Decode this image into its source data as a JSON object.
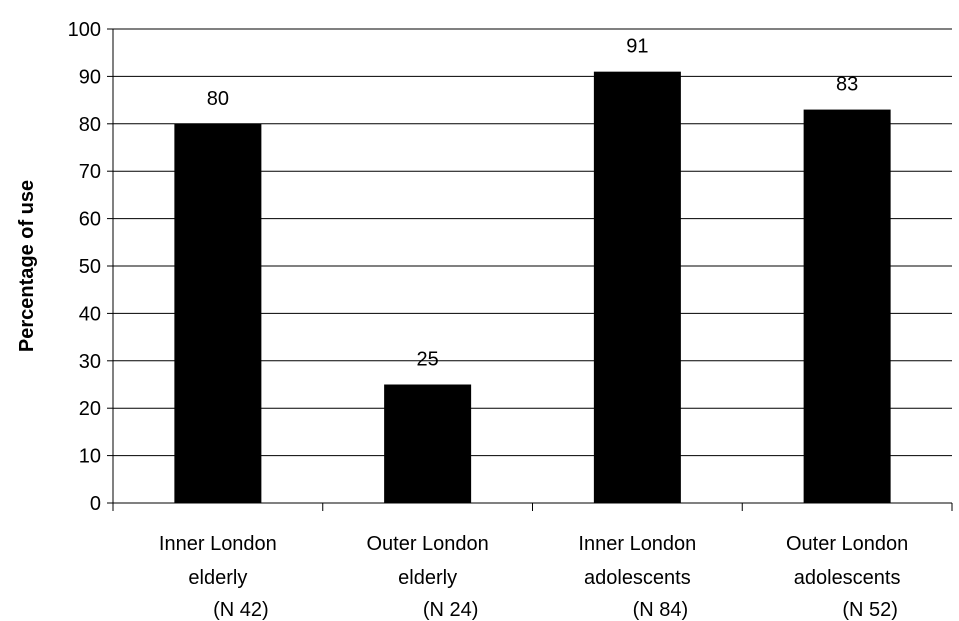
{
  "chart_data": {
    "type": "bar",
    "title": "",
    "xlabel": "",
    "ylabel": "Percentage of use",
    "ylim": [
      0,
      100
    ],
    "yticks": [
      0,
      10,
      20,
      30,
      40,
      50,
      60,
      70,
      80,
      90,
      100
    ],
    "grid": true,
    "legend": "none",
    "categories": [
      {
        "lines": [
          "Inner London",
          "elderly",
          "(N 42)"
        ]
      },
      {
        "lines": [
          "Outer London",
          "elderly",
          "(N 24)"
        ]
      },
      {
        "lines": [
          "Inner London",
          "adolescents",
          "(N 84)"
        ]
      },
      {
        "lines": [
          "Outer London",
          "adolescents",
          "(N 52)"
        ]
      }
    ],
    "values": [
      80,
      25,
      91,
      83
    ],
    "data_labels": [
      "80",
      "25",
      "91",
      "83"
    ],
    "colors": {
      "bar": "#000000",
      "grid": "#000000",
      "axis": "#000000",
      "background": "#ffffff"
    }
  }
}
